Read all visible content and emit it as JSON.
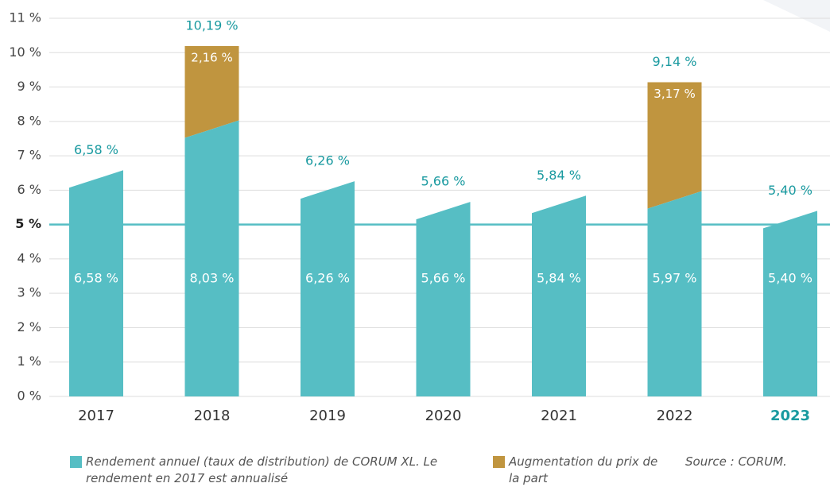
{
  "chart_data": {
    "type": "stacked_bar",
    "categories": [
      "2017",
      "2018",
      "2019",
      "2020",
      "2021",
      "2022",
      "2023"
    ],
    "highlight_category": "2023",
    "series": [
      {
        "name": "Rendement annuel (taux de distribution) de CORUM XL. Le rendement en 2017 est annualisé",
        "color": "#56bec4",
        "values": [
          6.58,
          8.03,
          6.26,
          5.66,
          5.84,
          5.97,
          5.4
        ],
        "value_labels": [
          "6,58 %",
          "8,03 %",
          "6,26 %",
          "5,66 %",
          "5,84 %",
          "5,97 %",
          "5,40 %"
        ]
      },
      {
        "name": "Augmentation du prix de la part",
        "color": "#c0953f",
        "values": [
          null,
          2.16,
          null,
          null,
          null,
          3.17,
          null
        ],
        "value_labels": [
          null,
          "2,16 %",
          null,
          null,
          null,
          "3,17 %",
          null
        ]
      }
    ],
    "totals": [
      6.58,
      10.19,
      6.26,
      5.66,
      5.84,
      9.14,
      5.4
    ],
    "total_labels": [
      "6,58 %",
      "10,19 %",
      "6,26 %",
      "5,66 %",
      "5,84 %",
      "9,14 %",
      "5,40 %"
    ],
    "ylim": [
      0,
      11
    ],
    "yticks": [
      {
        "value": 0,
        "label": "0 %"
      },
      {
        "value": 1,
        "label": "1 %"
      },
      {
        "value": 2,
        "label": "2 %"
      },
      {
        "value": 3,
        "label": "3 %"
      },
      {
        "value": 4,
        "label": "4 %"
      },
      {
        "value": 5,
        "label": "5 %"
      },
      {
        "value": 6,
        "label": "6 %"
      },
      {
        "value": 7,
        "label": "7 %"
      },
      {
        "value": 8,
        "label": "8 %"
      },
      {
        "value": 9,
        "label": "9 %"
      },
      {
        "value": 10,
        "label": "10 %"
      },
      {
        "value": 11,
        "label": "11 %"
      }
    ],
    "reference_line": 5,
    "reference_color": "#56bec4",
    "grid": true,
    "source": "Source : CORUM."
  }
}
